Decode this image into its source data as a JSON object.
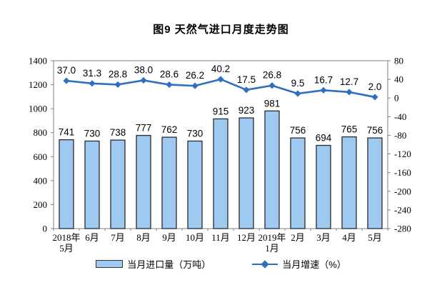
{
  "title": "图9  天然气进口月度走势图",
  "legend": {
    "bar_label": "当月进口量（万吨）",
    "line_label": "当月增速（%）"
  },
  "colors": {
    "bar_fill": "#9EC9F0",
    "bar_border": "#2B2B2B",
    "line": "#2E70C0",
    "axis": "#808080",
    "text": "#000000"
  },
  "chart_data": {
    "type": "bar+line",
    "categories": [
      "2018年\n5月",
      "6月",
      "7月",
      "8月",
      "9月",
      "10月",
      "11月",
      "12月",
      "2019年\n1月",
      "2月",
      "3月",
      "4月",
      "5月"
    ],
    "series": [
      {
        "name": "当月进口量（万吨）",
        "type": "bar",
        "axis": "left",
        "values": [
          741,
          730,
          738,
          777,
          762,
          730,
          915,
          923,
          981,
          756,
          694,
          765,
          756
        ]
      },
      {
        "name": "当月增速（%）",
        "type": "line",
        "axis": "right",
        "values": [
          37.0,
          31.3,
          28.8,
          38.0,
          28.6,
          26.2,
          40.2,
          17.5,
          26.8,
          9.5,
          16.7,
          12.7,
          2.0
        ]
      }
    ],
    "left_axis": {
      "min": 0,
      "max": 1400,
      "ticks": [
        0,
        200,
        400,
        600,
        800,
        1000,
        1200,
        1400
      ]
    },
    "right_axis": {
      "min": -280,
      "max": 80,
      "ticks": [
        -280,
        -240,
        -200,
        -160,
        -120,
        -80,
        -40,
        0,
        40,
        80
      ]
    },
    "title": "图9  天然气进口月度走势图",
    "xlabel": "",
    "ylabel_left": "当月进口量（万吨）",
    "ylabel_right": "当月增速（%）",
    "grid": false,
    "legend_position": "bottom",
    "bar_value_labels": true,
    "line_value_labels_decimals": 1
  }
}
